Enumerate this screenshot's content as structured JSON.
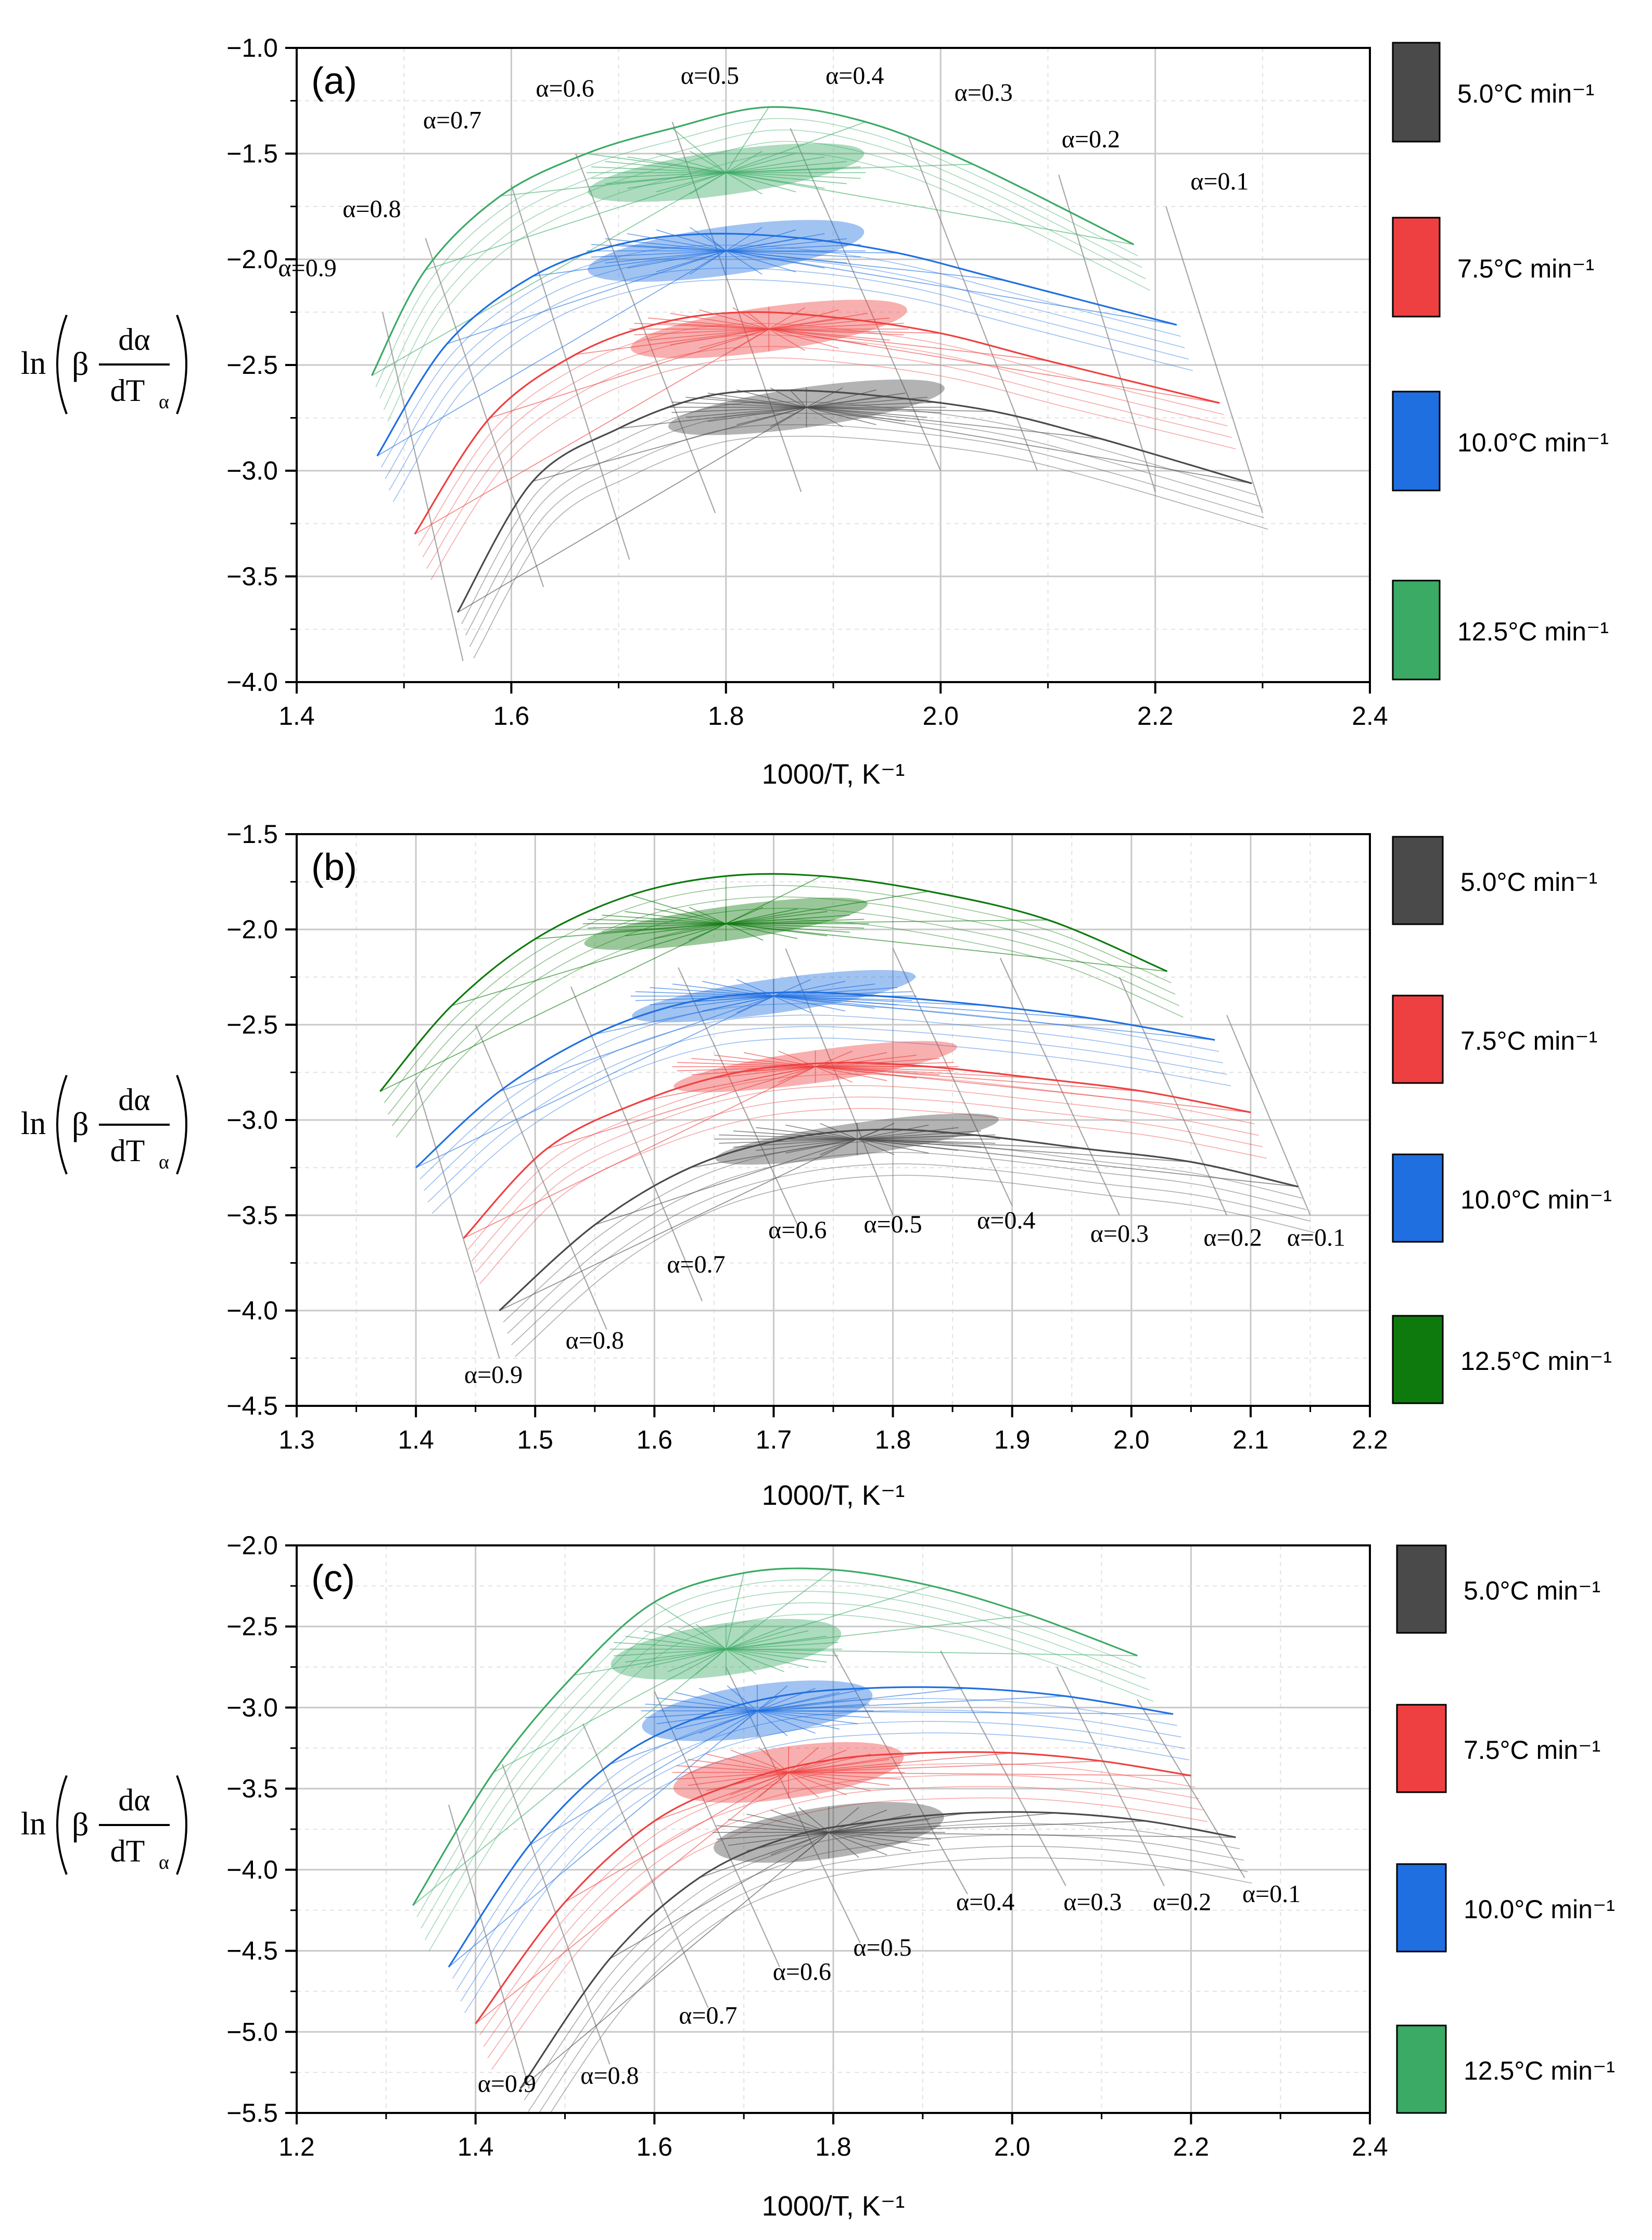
{
  "colors": {
    "5.0": "#4a4a4a",
    "7.5": "#ee4040",
    "10.0": "#1f6fe0",
    "12.5a": "#3aaa64",
    "12.5b": "#0e7a0e",
    "12.5c": "#3aaa64"
  },
  "chart_data": [
    {
      "type": "line",
      "panel": "(a)",
      "title": "(a)",
      "xlabel": "1000/T, K⁻¹",
      "ylabel": "ln(β dα/dTα)",
      "xlim": [
        1.4,
        2.4
      ],
      "ylim": [
        -4.0,
        -1.0
      ],
      "xticks": [
        "1.4",
        "1.6",
        "1.8",
        "2.0",
        "2.2",
        "2.4"
      ],
      "yticks": [
        "-1.0",
        "-1.5",
        "-2.0",
        "-2.5",
        "-3.0",
        "-3.5",
        "-4.0"
      ],
      "grid": true,
      "legend_position": "right",
      "legend": [
        {
          "label": "5.0°C min⁻¹",
          "color_key": "5.0"
        },
        {
          "label": "7.5°C min⁻¹",
          "color_key": "7.5"
        },
        {
          "label": "10.0°C min⁻¹",
          "color_key": "10.0"
        },
        {
          "label": "12.5°C min⁻¹",
          "color_key": "12.5a"
        }
      ],
      "series": [
        {
          "name": "5.0°C min⁻¹",
          "color_key": "5.0",
          "x": [
            1.55,
            1.62,
            1.7,
            1.78,
            1.86,
            1.95,
            2.05,
            2.15,
            2.29
          ],
          "y": [
            -3.67,
            -3.05,
            -2.8,
            -2.65,
            -2.62,
            -2.65,
            -2.72,
            -2.85,
            -3.06
          ]
        },
        {
          "name": "7.5°C min⁻¹",
          "color_key": "7.5",
          "x": [
            1.51,
            1.58,
            1.66,
            1.74,
            1.82,
            1.91,
            2.0,
            2.1,
            2.26
          ],
          "y": [
            -3.3,
            -2.75,
            -2.45,
            -2.3,
            -2.25,
            -2.28,
            -2.35,
            -2.48,
            -2.68
          ]
        },
        {
          "name": "10.0°C min⁻¹",
          "color_key": "10.0",
          "x": [
            1.475,
            1.54,
            1.62,
            1.7,
            1.78,
            1.87,
            1.96,
            2.06,
            2.22
          ],
          "y": [
            -2.93,
            -2.4,
            -2.08,
            -1.93,
            -1.88,
            -1.9,
            -1.97,
            -2.1,
            -2.31
          ]
        },
        {
          "name": "12.5°C min⁻¹",
          "color_key": "12.5a",
          "x": [
            1.47,
            1.52,
            1.59,
            1.67,
            1.75,
            1.84,
            1.93,
            2.03,
            2.18
          ],
          "y": [
            -2.55,
            -2.05,
            -1.7,
            -1.5,
            -1.38,
            -1.28,
            -1.35,
            -1.55,
            -1.93
          ]
        }
      ],
      "alpha_lines": [
        {
          "label": "α=0.9",
          "x": [
            1.48,
            1.555
          ],
          "y": [
            -2.25,
            -3.9
          ]
        },
        {
          "label": "α=0.8",
          "x": [
            1.52,
            1.63
          ],
          "y": [
            -1.9,
            -3.55
          ]
        },
        {
          "label": "α=0.7",
          "x": [
            1.6,
            1.71
          ],
          "y": [
            -1.65,
            -3.42
          ]
        },
        {
          "label": "α=0.6",
          "x": [
            1.66,
            1.79
          ],
          "y": [
            -1.5,
            -3.2
          ]
        },
        {
          "label": "α=0.5",
          "x": [
            1.75,
            1.87
          ],
          "y": [
            -1.35,
            -3.1
          ]
        },
        {
          "label": "α=0.4",
          "x": [
            1.86,
            2.0
          ],
          "y": [
            -1.38,
            -3.0
          ]
        },
        {
          "label": "α=0.3",
          "x": [
            1.97,
            2.09
          ],
          "y": [
            -1.42,
            -3.0
          ]
        },
        {
          "label": "α=0.2",
          "x": [
            2.11,
            2.2
          ],
          "y": [
            -1.6,
            -3.1
          ]
        },
        {
          "label": "α=0.1",
          "x": [
            2.21,
            2.3
          ],
          "y": [
            -1.75,
            -3.2
          ]
        }
      ],
      "alpha_labels": [
        {
          "text": "α=0.9",
          "x": 1.41,
          "y": -2.08
        },
        {
          "text": "α=0.8",
          "x": 1.47,
          "y": -1.8
        },
        {
          "text": "α=0.7",
          "x": 1.545,
          "y": -1.38
        },
        {
          "text": "α=0.6",
          "x": 1.65,
          "y": -1.23
        },
        {
          "text": "α=0.5",
          "x": 1.785,
          "y": -1.17
        },
        {
          "text": "α=0.4",
          "x": 1.92,
          "y": -1.17
        },
        {
          "text": "α=0.3",
          "x": 2.04,
          "y": -1.25
        },
        {
          "text": "α=0.2",
          "x": 2.14,
          "y": -1.47
        },
        {
          "text": "α=0.1",
          "x": 2.26,
          "y": -1.67
        }
      ],
      "ellipses": [
        {
          "color_key": "5.0",
          "cx": 1.875,
          "cy": -2.7,
          "rx": 0.13,
          "ry": 0.19
        },
        {
          "color_key": "7.5",
          "cx": 1.84,
          "cy": -2.33,
          "rx": 0.13,
          "ry": 0.21
        },
        {
          "color_key": "10.0",
          "cx": 1.8,
          "cy": -1.96,
          "rx": 0.13,
          "ry": 0.23
        },
        {
          "color_key": "12.5a",
          "cx": 1.8,
          "cy": -1.59,
          "rx": 0.13,
          "ry": 0.21
        }
      ]
    },
    {
      "type": "line",
      "panel": "(b)",
      "title": "(b)",
      "xlabel": "1000/T, K⁻¹",
      "ylabel": "ln(β dα/dTα)",
      "xlim": [
        1.3,
        2.2
      ],
      "ylim": [
        -4.5,
        -1.5
      ],
      "xticks": [
        "1.3",
        "1.4",
        "1.5",
        "1.6",
        "1.7",
        "1.8",
        "1.9",
        "2.0",
        "2.1",
        "2.2"
      ],
      "yticks": [
        "-1.5",
        "-2.0",
        "-2.5",
        "-3.0",
        "-3.5",
        "-4.0",
        "-4.5"
      ],
      "grid": true,
      "legend_position": "right",
      "legend": [
        {
          "label": "5.0°C min⁻¹",
          "color_key": "5.0"
        },
        {
          "label": "7.5°C min⁻¹",
          "color_key": "7.5"
        },
        {
          "label": "10.0°C min⁻¹",
          "color_key": "10.0"
        },
        {
          "label": "12.5°C min⁻¹",
          "color_key": "12.5b"
        }
      ],
      "series": [
        {
          "name": "5.0°C min⁻¹",
          "color_key": "5.0",
          "x": [
            1.47,
            1.55,
            1.63,
            1.71,
            1.79,
            1.87,
            1.96,
            2.05,
            2.14
          ],
          "y": [
            -4.0,
            -3.55,
            -3.25,
            -3.1,
            -3.05,
            -3.08,
            -3.15,
            -3.22,
            -3.35
          ]
        },
        {
          "name": "7.5°C min⁻¹",
          "color_key": "7.5",
          "x": [
            1.44,
            1.51,
            1.59,
            1.67,
            1.75,
            1.83,
            1.92,
            2.01,
            2.1
          ],
          "y": [
            -3.62,
            -3.15,
            -2.9,
            -2.75,
            -2.7,
            -2.72,
            -2.78,
            -2.85,
            -2.96
          ]
        },
        {
          "name": "10.0°C min⁻¹",
          "color_key": "10.0",
          "x": [
            1.4,
            1.47,
            1.55,
            1.63,
            1.71,
            1.79,
            1.88,
            1.97,
            2.07
          ],
          "y": [
            -3.25,
            -2.85,
            -2.55,
            -2.38,
            -2.33,
            -2.35,
            -2.4,
            -2.47,
            -2.58
          ]
        },
        {
          "name": "12.5°C min⁻¹",
          "color_key": "12.5b",
          "x": [
            1.37,
            1.43,
            1.5,
            1.58,
            1.66,
            1.74,
            1.83,
            1.93,
            2.03
          ],
          "y": [
            -2.85,
            -2.4,
            -2.05,
            -1.82,
            -1.72,
            -1.72,
            -1.8,
            -1.95,
            -2.22
          ]
        }
      ],
      "alpha_lines": [
        {
          "label": "α=0.9",
          "x": [
            1.4,
            1.47
          ],
          "y": [
            -2.8,
            -4.25
          ]
        },
        {
          "label": "α=0.8",
          "x": [
            1.45,
            1.56
          ],
          "y": [
            -2.5,
            -4.1
          ]
        },
        {
          "label": "α=0.7",
          "x": [
            1.53,
            1.64
          ],
          "y": [
            -2.3,
            -3.95
          ]
        },
        {
          "label": "α=0.6",
          "x": [
            1.62,
            1.72
          ],
          "y": [
            -2.2,
            -3.55
          ]
        },
        {
          "label": "α=0.5",
          "x": [
            1.71,
            1.8
          ],
          "y": [
            -2.1,
            -3.5
          ]
        },
        {
          "label": "α=0.4",
          "x": [
            1.8,
            1.9
          ],
          "y": [
            -2.1,
            -3.45
          ]
        },
        {
          "label": "α=0.3",
          "x": [
            1.89,
            1.99
          ],
          "y": [
            -2.15,
            -3.5
          ]
        },
        {
          "label": "α=0.2",
          "x": [
            1.99,
            2.08
          ],
          "y": [
            -2.25,
            -3.5
          ]
        },
        {
          "label": "α=0.1",
          "x": [
            2.08,
            2.15
          ],
          "y": [
            -2.45,
            -3.5
          ]
        }
      ],
      "alpha_labels": [
        {
          "text": "α=0.9",
          "x": 1.465,
          "y": -4.38
        },
        {
          "text": "α=0.8",
          "x": 1.55,
          "y": -4.2
        },
        {
          "text": "α=0.7",
          "x": 1.635,
          "y": -3.8
        },
        {
          "text": "α=0.6",
          "x": 1.72,
          "y": -3.62
        },
        {
          "text": "α=0.5",
          "x": 1.8,
          "y": -3.59
        },
        {
          "text": "α=0.4",
          "x": 1.895,
          "y": -3.57
        },
        {
          "text": "α=0.3",
          "x": 1.99,
          "y": -3.64
        },
        {
          "text": "α=0.2",
          "x": 2.085,
          "y": -3.66
        },
        {
          "text": "α=0.1",
          "x": 2.155,
          "y": -3.66
        }
      ],
      "ellipses": [
        {
          "color_key": "5.0",
          "cx": 1.77,
          "cy": -3.1,
          "rx": 0.12,
          "ry": 0.17
        },
        {
          "color_key": "7.5",
          "cx": 1.735,
          "cy": -2.72,
          "rx": 0.12,
          "ry": 0.17
        },
        {
          "color_key": "10.0",
          "cx": 1.7,
          "cy": -2.35,
          "rx": 0.12,
          "ry": 0.18
        },
        {
          "color_key": "12.5b",
          "cx": 1.66,
          "cy": -1.97,
          "rx": 0.12,
          "ry": 0.18
        }
      ]
    },
    {
      "type": "line",
      "panel": "(c)",
      "title": "(c)",
      "xlabel": "1000/T, K⁻¹",
      "ylabel": "ln(β dα/dTα)",
      "xlim": [
        1.2,
        2.4
      ],
      "ylim": [
        -5.5,
        -2.0
      ],
      "xticks": [
        "1.2",
        "1.4",
        "1.6",
        "1.8",
        "2.0",
        "2.2",
        "2.4"
      ],
      "yticks": [
        "-2.0",
        "-2.5",
        "-3.0",
        "-3.5",
        "-4.0",
        "-4.5",
        "-5.0",
        "-5.5"
      ],
      "grid": true,
      "legend_position": "right",
      "legend": [
        {
          "label": "5.0°C min⁻¹",
          "color_key": "5.0"
        },
        {
          "label": "7.5°C min⁻¹",
          "color_key": "7.5"
        },
        {
          "label": "10.0°C min⁻¹",
          "color_key": "10.0"
        },
        {
          "label": "12.5°C min⁻¹",
          "color_key": "12.5c"
        }
      ],
      "series": [
        {
          "name": "5.0°C min⁻¹",
          "color_key": "5.0",
          "x": [
            1.45,
            1.55,
            1.65,
            1.75,
            1.85,
            1.95,
            2.05,
            2.15,
            2.25
          ],
          "y": [
            -5.35,
            -4.55,
            -4.05,
            -3.8,
            -3.7,
            -3.65,
            -3.65,
            -3.7,
            -3.8
          ]
        },
        {
          "name": "7.5°C min⁻¹",
          "color_key": "7.5",
          "x": [
            1.4,
            1.5,
            1.6,
            1.7,
            1.8,
            1.9,
            2.0,
            2.1,
            2.2
          ],
          "y": [
            -4.95,
            -4.2,
            -3.7,
            -3.45,
            -3.32,
            -3.28,
            -3.28,
            -3.33,
            -3.42
          ]
        },
        {
          "name": "10.0°C min⁻¹",
          "color_key": "10.0",
          "x": [
            1.37,
            1.46,
            1.55,
            1.64,
            1.74,
            1.84,
            1.95,
            2.06,
            2.18
          ],
          "y": [
            -4.6,
            -3.85,
            -3.35,
            -3.08,
            -2.93,
            -2.88,
            -2.88,
            -2.93,
            -3.04
          ]
        },
        {
          "name": "12.5°C min⁻¹",
          "color_key": "12.5c",
          "x": [
            1.33,
            1.42,
            1.51,
            1.6,
            1.7,
            1.8,
            1.91,
            2.02,
            2.14
          ],
          "y": [
            -4.22,
            -3.4,
            -2.8,
            -2.35,
            -2.17,
            -2.15,
            -2.25,
            -2.43,
            -2.68
          ]
        }
      ],
      "alpha_lines": [
        {
          "label": "α=0.9",
          "x": [
            1.37,
            1.46
          ],
          "y": [
            -3.6,
            -5.35
          ]
        },
        {
          "label": "α=0.8",
          "x": [
            1.43,
            1.55
          ],
          "y": [
            -3.35,
            -5.2
          ]
        },
        {
          "label": "α=0.7",
          "x": [
            1.52,
            1.66
          ],
          "y": [
            -3.1,
            -4.85
          ]
        },
        {
          "label": "α=0.6",
          "x": [
            1.6,
            1.74
          ],
          "y": [
            -2.9,
            -4.6
          ]
        },
        {
          "label": "α=0.5",
          "x": [
            1.68,
            1.83
          ],
          "y": [
            -2.75,
            -4.45
          ]
        },
        {
          "label": "α=0.4",
          "x": [
            1.8,
            1.95
          ],
          "y": [
            -2.65,
            -4.15
          ]
        },
        {
          "label": "α=0.3",
          "x": [
            1.92,
            2.06
          ],
          "y": [
            -2.65,
            -4.1
          ]
        },
        {
          "label": "α=0.2",
          "x": [
            2.05,
            2.17
          ],
          "y": [
            -2.75,
            -4.1
          ]
        },
        {
          "label": "α=0.1",
          "x": [
            2.14,
            2.26
          ],
          "y": [
            -2.95,
            -4.05
          ]
        }
      ],
      "alpha_labels": [
        {
          "text": "α=0.9",
          "x": 1.435,
          "y": -5.37
        },
        {
          "text": "α=0.8",
          "x": 1.55,
          "y": -5.32
        },
        {
          "text": "α=0.7",
          "x": 1.66,
          "y": -4.95
        },
        {
          "text": "α=0.6",
          "x": 1.765,
          "y": -4.68
        },
        {
          "text": "α=0.5",
          "x": 1.855,
          "y": -4.53
        },
        {
          "text": "α=0.4",
          "x": 1.97,
          "y": -4.25
        },
        {
          "text": "α=0.3",
          "x": 2.09,
          "y": -4.25
        },
        {
          "text": "α=0.2",
          "x": 2.19,
          "y": -4.25
        },
        {
          "text": "α=0.1",
          "x": 2.29,
          "y": -4.2
        }
      ],
      "ellipses": [
        {
          "color_key": "5.0",
          "cx": 1.795,
          "cy": -3.77,
          "rx": 0.13,
          "ry": 0.32
        },
        {
          "color_key": "7.5",
          "cx": 1.75,
          "cy": -3.4,
          "rx": 0.13,
          "ry": 0.32
        },
        {
          "color_key": "10.0",
          "cx": 1.715,
          "cy": -3.02,
          "rx": 0.13,
          "ry": 0.32
        },
        {
          "color_key": "12.5c",
          "cx": 1.68,
          "cy": -2.64,
          "rx": 0.13,
          "ry": 0.32
        }
      ]
    }
  ]
}
